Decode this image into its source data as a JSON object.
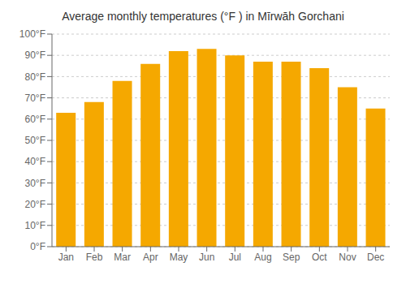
{
  "chart_data": {
    "type": "bar",
    "title": "Average monthly temperatures (°F ) in Mīrwāh Gorchani",
    "categories": [
      "Jan",
      "Feb",
      "Mar",
      "Apr",
      "May",
      "Jun",
      "Jul",
      "Aug",
      "Sep",
      "Oct",
      "Nov",
      "Dec"
    ],
    "values": [
      63,
      68,
      78,
      86,
      92,
      93,
      90,
      87,
      87,
      84,
      75,
      65
    ],
    "color": "#F5A800",
    "ylim": [
      0,
      100
    ],
    "yticks": [
      {
        "value": 0,
        "label": "0°F"
      },
      {
        "value": 10,
        "label": "10°F"
      },
      {
        "value": 20,
        "label": "20°F"
      },
      {
        "value": 30,
        "label": "30°F"
      },
      {
        "value": 40,
        "label": "40°F"
      },
      {
        "value": 50,
        "label": "50°F"
      },
      {
        "value": 60,
        "label": "60°F"
      },
      {
        "value": 70,
        "label": "70°F"
      },
      {
        "value": 80,
        "label": "80°F"
      },
      {
        "value": 90,
        "label": "90°F"
      },
      {
        "value": 100,
        "label": "100°F"
      }
    ],
    "grid": true
  }
}
